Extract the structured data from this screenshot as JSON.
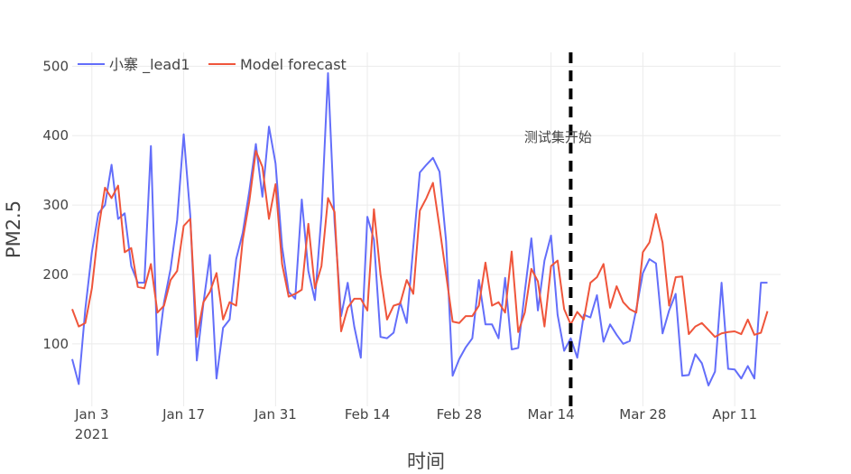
{
  "chart_data": {
    "type": "line",
    "xlabel": "时间",
    "ylabel": "PM2.5",
    "ylim": [
      10,
      520
    ],
    "yticks": [
      100,
      200,
      300,
      400,
      500
    ],
    "x_start": "2020-12-31",
    "x_end": "2021-04-18",
    "xticks": [
      {
        "date": "2021-01-03",
        "label": "Jan 3",
        "label2": "2021"
      },
      {
        "date": "2021-01-17",
        "label": "Jan 17",
        "label2": ""
      },
      {
        "date": "2021-01-31",
        "label": "Jan 31",
        "label2": ""
      },
      {
        "date": "2021-02-14",
        "label": "Feb 14",
        "label2": ""
      },
      {
        "date": "2021-02-28",
        "label": "Feb 28",
        "label2": ""
      },
      {
        "date": "2021-03-14",
        "label": "Mar 14",
        "label2": ""
      },
      {
        "date": "2021-03-28",
        "label": "Mar 28",
        "label2": ""
      },
      {
        "date": "2021-04-11",
        "label": "Apr 11",
        "label2": ""
      }
    ],
    "grid": true,
    "legend_position": "top-left",
    "annotation": {
      "text": "测试集开始",
      "date": "2021-03-17"
    },
    "series": [
      {
        "name": "小寨 _lead1",
        "color": "#636efa",
        "values": [
          [
            "2020-12-31",
            78
          ],
          [
            "2021-01-01",
            42
          ],
          [
            "2021-01-02",
            150
          ],
          [
            "2021-01-03",
            232
          ],
          [
            "2021-01-04",
            288
          ],
          [
            "2021-01-05",
            300
          ],
          [
            "2021-01-06",
            358
          ],
          [
            "2021-01-07",
            280
          ],
          [
            "2021-01-08",
            288
          ],
          [
            "2021-01-09",
            212
          ],
          [
            "2021-01-10",
            188
          ],
          [
            "2021-01-11",
            188
          ],
          [
            "2021-01-12",
            385
          ],
          [
            "2021-01-13",
            84
          ],
          [
            "2021-01-14",
            160
          ],
          [
            "2021-01-15",
            208
          ],
          [
            "2021-01-16",
            278
          ],
          [
            "2021-01-17",
            402
          ],
          [
            "2021-01-18",
            285
          ],
          [
            "2021-01-19",
            76
          ],
          [
            "2021-01-20",
            158
          ],
          [
            "2021-01-21",
            228
          ],
          [
            "2021-01-22",
            50
          ],
          [
            "2021-01-23",
            123
          ],
          [
            "2021-01-24",
            135
          ],
          [
            "2021-01-25",
            222
          ],
          [
            "2021-01-26",
            260
          ],
          [
            "2021-01-27",
            320
          ],
          [
            "2021-01-28",
            388
          ],
          [
            "2021-01-29",
            312
          ],
          [
            "2021-01-30",
            413
          ],
          [
            "2021-01-31",
            360
          ],
          [
            "2021-02-01",
            240
          ],
          [
            "2021-02-02",
            175
          ],
          [
            "2021-02-03",
            165
          ],
          [
            "2021-02-04",
            308
          ],
          [
            "2021-02-05",
            205
          ],
          [
            "2021-02-06",
            163
          ],
          [
            "2021-02-07",
            285
          ],
          [
            "2021-02-08",
            490
          ],
          [
            "2021-02-09",
            275
          ],
          [
            "2021-02-10",
            140
          ],
          [
            "2021-02-11",
            188
          ],
          [
            "2021-02-12",
            125
          ],
          [
            "2021-02-13",
            80
          ],
          [
            "2021-02-14",
            283
          ],
          [
            "2021-02-15",
            250
          ],
          [
            "2021-02-16",
            110
          ],
          [
            "2021-02-17",
            108
          ],
          [
            "2021-02-18",
            116
          ],
          [
            "2021-02-19",
            160
          ],
          [
            "2021-02-20",
            130
          ],
          [
            "2021-02-21",
            240
          ],
          [
            "2021-02-22",
            347
          ],
          [
            "2021-02-23",
            358
          ],
          [
            "2021-02-24",
            368
          ],
          [
            "2021-02-25",
            348
          ],
          [
            "2021-02-26",
            248
          ],
          [
            "2021-02-27",
            54
          ],
          [
            "2021-02-28",
            78
          ],
          [
            "2021-03-01",
            95
          ],
          [
            "2021-03-02",
            108
          ],
          [
            "2021-03-03",
            192
          ],
          [
            "2021-03-04",
            128
          ],
          [
            "2021-03-05",
            128
          ],
          [
            "2021-03-06",
            108
          ],
          [
            "2021-03-07",
            195
          ],
          [
            "2021-03-08",
            92
          ],
          [
            "2021-03-09",
            94
          ],
          [
            "2021-03-10",
            175
          ],
          [
            "2021-03-11",
            252
          ],
          [
            "2021-03-12",
            148
          ],
          [
            "2021-03-13",
            220
          ],
          [
            "2021-03-14",
            256
          ],
          [
            "2021-03-15",
            142
          ],
          [
            "2021-03-16",
            90
          ],
          [
            "2021-03-17",
            108
          ],
          [
            "2021-03-18",
            80
          ],
          [
            "2021-03-19",
            142
          ],
          [
            "2021-03-20",
            138
          ],
          [
            "2021-03-21",
            170
          ],
          [
            "2021-03-22",
            103
          ],
          [
            "2021-03-23",
            128
          ],
          [
            "2021-03-24",
            113
          ],
          [
            "2021-03-25",
            100
          ],
          [
            "2021-03-26",
            104
          ],
          [
            "2021-03-27",
            150
          ],
          [
            "2021-03-28",
            202
          ],
          [
            "2021-03-29",
            222
          ],
          [
            "2021-03-30",
            216
          ],
          [
            "2021-03-31",
            115
          ],
          [
            "2021-04-01",
            148
          ],
          [
            "2021-04-02",
            172
          ],
          [
            "2021-04-03",
            54
          ],
          [
            "2021-04-04",
            55
          ],
          [
            "2021-04-05",
            85
          ],
          [
            "2021-04-06",
            72
          ],
          [
            "2021-04-07",
            40
          ],
          [
            "2021-04-08",
            60
          ],
          [
            "2021-04-09",
            188
          ],
          [
            "2021-04-10",
            64
          ],
          [
            "2021-04-11",
            63
          ],
          [
            "2021-04-12",
            50
          ],
          [
            "2021-04-13",
            68
          ],
          [
            "2021-04-14",
            50
          ],
          [
            "2021-04-15",
            188
          ],
          [
            "2021-04-16",
            188
          ]
        ]
      },
      {
        "name": "Model forecast",
        "color": "#ef553b",
        "values": [
          [
            "2020-12-31",
            150
          ],
          [
            "2021-01-01",
            125
          ],
          [
            "2021-01-02",
            130
          ],
          [
            "2021-01-03",
            180
          ],
          [
            "2021-01-04",
            265
          ],
          [
            "2021-01-05",
            325
          ],
          [
            "2021-01-06",
            310
          ],
          [
            "2021-01-07",
            328
          ],
          [
            "2021-01-08",
            232
          ],
          [
            "2021-01-09",
            238
          ],
          [
            "2021-01-10",
            182
          ],
          [
            "2021-01-11",
            180
          ],
          [
            "2021-01-12",
            215
          ],
          [
            "2021-01-13",
            145
          ],
          [
            "2021-01-14",
            155
          ],
          [
            "2021-01-15",
            192
          ],
          [
            "2021-01-16",
            205
          ],
          [
            "2021-01-17",
            270
          ],
          [
            "2021-01-18",
            280
          ],
          [
            "2021-01-19",
            110
          ],
          [
            "2021-01-20",
            160
          ],
          [
            "2021-01-21",
            175
          ],
          [
            "2021-01-22",
            202
          ],
          [
            "2021-01-23",
            135
          ],
          [
            "2021-01-24",
            160
          ],
          [
            "2021-01-25",
            155
          ],
          [
            "2021-01-26",
            250
          ],
          [
            "2021-01-27",
            305
          ],
          [
            "2021-01-28",
            378
          ],
          [
            "2021-01-29",
            355
          ],
          [
            "2021-01-30",
            280
          ],
          [
            "2021-01-31",
            330
          ],
          [
            "2021-02-01",
            215
          ],
          [
            "2021-02-02",
            168
          ],
          [
            "2021-02-03",
            172
          ],
          [
            "2021-02-04",
            178
          ],
          [
            "2021-02-05",
            273
          ],
          [
            "2021-02-06",
            180
          ],
          [
            "2021-02-07",
            212
          ],
          [
            "2021-02-08",
            310
          ],
          [
            "2021-02-09",
            290
          ],
          [
            "2021-02-10",
            118
          ],
          [
            "2021-02-11",
            152
          ],
          [
            "2021-02-12",
            165
          ],
          [
            "2021-02-13",
            165
          ],
          [
            "2021-02-14",
            148
          ],
          [
            "2021-02-15",
            294
          ],
          [
            "2021-02-16",
            200
          ],
          [
            "2021-02-17",
            135
          ],
          [
            "2021-02-18",
            155
          ],
          [
            "2021-02-19",
            158
          ],
          [
            "2021-02-20",
            192
          ],
          [
            "2021-02-21",
            172
          ],
          [
            "2021-02-22",
            292
          ],
          [
            "2021-02-23",
            310
          ],
          [
            "2021-02-24",
            332
          ],
          [
            "2021-02-25",
            268
          ],
          [
            "2021-02-26",
            200
          ],
          [
            "2021-02-27",
            132
          ],
          [
            "2021-02-28",
            130
          ],
          [
            "2021-03-01",
            140
          ],
          [
            "2021-03-02",
            140
          ],
          [
            "2021-03-03",
            155
          ],
          [
            "2021-03-04",
            217
          ],
          [
            "2021-03-05",
            155
          ],
          [
            "2021-03-06",
            160
          ],
          [
            "2021-03-07",
            145
          ],
          [
            "2021-03-08",
            233
          ],
          [
            "2021-03-09",
            117
          ],
          [
            "2021-03-10",
            145
          ],
          [
            "2021-03-11",
            208
          ],
          [
            "2021-03-12",
            190
          ],
          [
            "2021-03-13",
            125
          ],
          [
            "2021-03-14",
            212
          ],
          [
            "2021-03-15",
            220
          ],
          [
            "2021-03-16",
            150
          ],
          [
            "2021-03-17",
            128
          ],
          [
            "2021-03-18",
            146
          ],
          [
            "2021-03-19",
            135
          ],
          [
            "2021-03-20",
            188
          ],
          [
            "2021-03-21",
            196
          ],
          [
            "2021-03-22",
            215
          ],
          [
            "2021-03-23",
            152
          ],
          [
            "2021-03-24",
            183
          ],
          [
            "2021-03-25",
            160
          ],
          [
            "2021-03-26",
            150
          ],
          [
            "2021-03-27",
            145
          ],
          [
            "2021-03-28",
            232
          ],
          [
            "2021-03-29",
            246
          ],
          [
            "2021-03-30",
            287
          ],
          [
            "2021-03-31",
            246
          ],
          [
            "2021-04-01",
            155
          ],
          [
            "2021-04-02",
            196
          ],
          [
            "2021-04-03",
            197
          ],
          [
            "2021-04-04",
            114
          ],
          [
            "2021-04-05",
            125
          ],
          [
            "2021-04-06",
            130
          ],
          [
            "2021-04-07",
            120
          ],
          [
            "2021-04-08",
            110
          ],
          [
            "2021-04-09",
            115
          ],
          [
            "2021-04-10",
            117
          ],
          [
            "2021-04-11",
            118
          ],
          [
            "2021-04-12",
            114
          ],
          [
            "2021-04-13",
            135
          ],
          [
            "2021-04-14",
            113
          ],
          [
            "2021-04-15",
            116
          ],
          [
            "2021-04-16",
            147
          ]
        ]
      }
    ]
  }
}
